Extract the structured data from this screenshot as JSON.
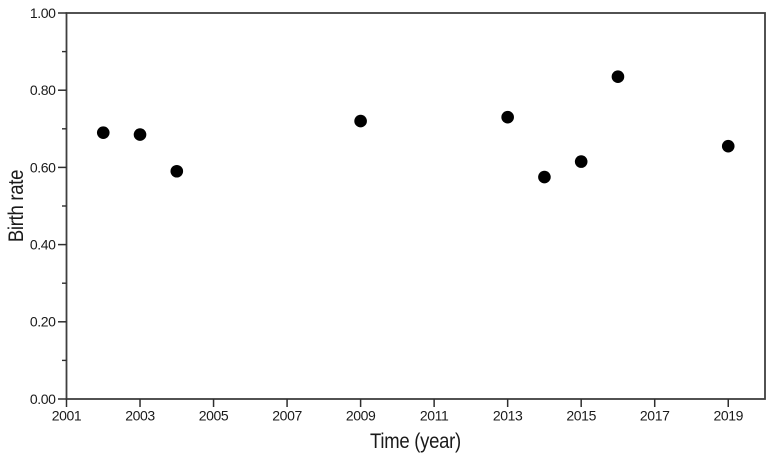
{
  "chart_data": {
    "type": "scatter",
    "title": "",
    "xlabel": "Time (year)",
    "ylabel": "Birth rate",
    "xlim": [
      2001,
      2020
    ],
    "ylim": [
      0.0,
      1.0
    ],
    "x_major_ticks": [
      2001,
      2003,
      2005,
      2007,
      2009,
      2011,
      2013,
      2015,
      2017,
      2019
    ],
    "x_tick_labels": [
      "2001",
      "2003",
      "2005",
      "2007",
      "2009",
      "2011",
      "2013",
      "2015",
      "2017",
      "2019"
    ],
    "y_major_ticks": [
      0.0,
      0.2,
      0.4,
      0.6,
      0.8,
      1.0
    ],
    "y_tick_labels": [
      "0.00",
      "0.20",
      "0.40",
      "0.60",
      "0.80",
      "1.00"
    ],
    "y_minor_ticks": [
      0.1,
      0.3,
      0.5,
      0.7,
      0.9
    ],
    "grid": false,
    "legend": null,
    "series_name": "Birth rate",
    "points": [
      {
        "x": 2002,
        "y": 0.69
      },
      {
        "x": 2003,
        "y": 0.685
      },
      {
        "x": 2004,
        "y": 0.59
      },
      {
        "x": 2009,
        "y": 0.72
      },
      {
        "x": 2013,
        "y": 0.73
      },
      {
        "x": 2014,
        "y": 0.575
      },
      {
        "x": 2015,
        "y": 0.615
      },
      {
        "x": 2016,
        "y": 0.835
      },
      {
        "x": 2019,
        "y": 0.655
      }
    ],
    "marker": {
      "shape": "circle",
      "radius_px": 6.3,
      "color": "#000000"
    },
    "colors": {
      "frame": "#3f3f3f",
      "tick": "#2e2e2e",
      "text": "#1a1a1a",
      "background": "#ffffff"
    }
  }
}
